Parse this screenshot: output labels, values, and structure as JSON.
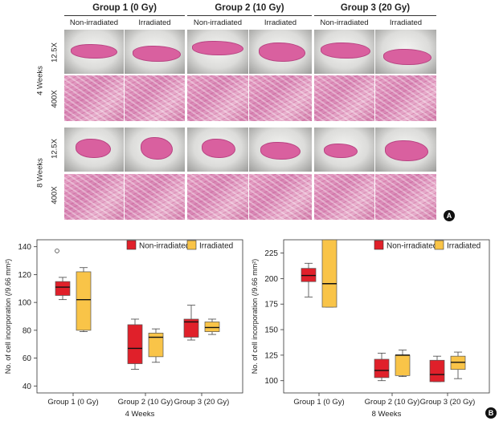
{
  "histology": {
    "groups": [
      {
        "title": "Group 1 (0 Gy)"
      },
      {
        "title": "Group 2 (10 Gy)"
      },
      {
        "title": "Group 3 (20 Gy)"
      }
    ],
    "columns": [
      "Non-irradiated",
      "Irradiated",
      "Non-irradiated",
      "Irradiated",
      "Non-irradiated",
      "Irradiated"
    ],
    "timepoints": [
      "4 Weeks",
      "8 Weeks"
    ],
    "magnifications": [
      "12.5X",
      "400X"
    ],
    "panel_label": "A"
  },
  "chart_panel_label": "B",
  "chart_data": [
    {
      "type": "boxplot",
      "title": "4 Weeks",
      "xlabel": "4 Weeks",
      "ylabel": "No. of cell incorporation (/9.66 mm²)",
      "ylim": [
        35,
        145
      ],
      "yticks": [
        40,
        60,
        80,
        100,
        120,
        140
      ],
      "categories": [
        "Group 1 (0 Gy)",
        "Group 2 (10 Gy)",
        "Group 3 (20 Gy)"
      ],
      "legend": [
        {
          "name": "Non-irradiated",
          "color": "#e0202a"
        },
        {
          "name": "Irradiated",
          "color": "#f9c448"
        }
      ],
      "series": [
        {
          "name": "Non-irradiated",
          "color": "#e0202a",
          "boxes": [
            {
              "min": 102,
              "q1": 105,
              "median": 111,
              "q3": 115,
              "max": 118,
              "outliers": [
                137
              ]
            },
            {
              "min": 52,
              "q1": 56,
              "median": 67,
              "q3": 84,
              "max": 88,
              "outliers": []
            },
            {
              "min": 73,
              "q1": 75,
              "median": 86,
              "q3": 88,
              "max": 98,
              "outliers": []
            }
          ]
        },
        {
          "name": "Irradiated",
          "color": "#f9c448",
          "boxes": [
            {
              "min": 79,
              "q1": 80,
              "median": 102,
              "q3": 122,
              "max": 125,
              "outliers": []
            },
            {
              "min": 57,
              "q1": 61,
              "median": 75,
              "q3": 78,
              "max": 81,
              "outliers": []
            },
            {
              "min": 77,
              "q1": 79,
              "median": 82,
              "q3": 86,
              "max": 88,
              "outliers": []
            }
          ]
        }
      ]
    },
    {
      "type": "boxplot",
      "title": "8 Weeks",
      "xlabel": "8 Weeks",
      "ylabel": "No. of cell incorporation (/9.66 mm²)",
      "ylim": [
        88,
        238
      ],
      "yticks": [
        100,
        125,
        150,
        175,
        200,
        225
      ],
      "categories": [
        "Group 1 (0 Gy)",
        "Group 2 (10 Gy)",
        "Group 3 (20 Gy)"
      ],
      "legend": [
        {
          "name": "Non-irradiated",
          "color": "#e0202a"
        },
        {
          "name": "Irradiated",
          "color": "#f9c448"
        }
      ],
      "series": [
        {
          "name": "Non-irradiated",
          "color": "#e0202a",
          "boxes": [
            {
              "min": 182,
              "q1": 197,
              "median": 203,
              "q3": 210,
              "max": 215,
              "outliers": []
            },
            {
              "min": 100,
              "q1": 103,
              "median": 110,
              "q3": 121,
              "max": 127,
              "outliers": []
            },
            {
              "min": 99,
              "q1": 99,
              "median": 106,
              "q3": 120,
              "max": 124,
              "outliers": []
            }
          ]
        },
        {
          "name": "Irradiated",
          "color": "#f9c448",
          "boxes": [
            {
              "min": 172,
              "q1": 172,
              "median": 195,
              "q3": 238,
              "max": 238,
              "outliers": []
            },
            {
              "min": 104,
              "q1": 105,
              "median": 125,
              "q3": 125,
              "max": 130,
              "outliers": []
            },
            {
              "min": 102,
              "q1": 111,
              "median": 118,
              "q3": 124,
              "max": 128,
              "outliers": []
            }
          ]
        }
      ]
    }
  ]
}
